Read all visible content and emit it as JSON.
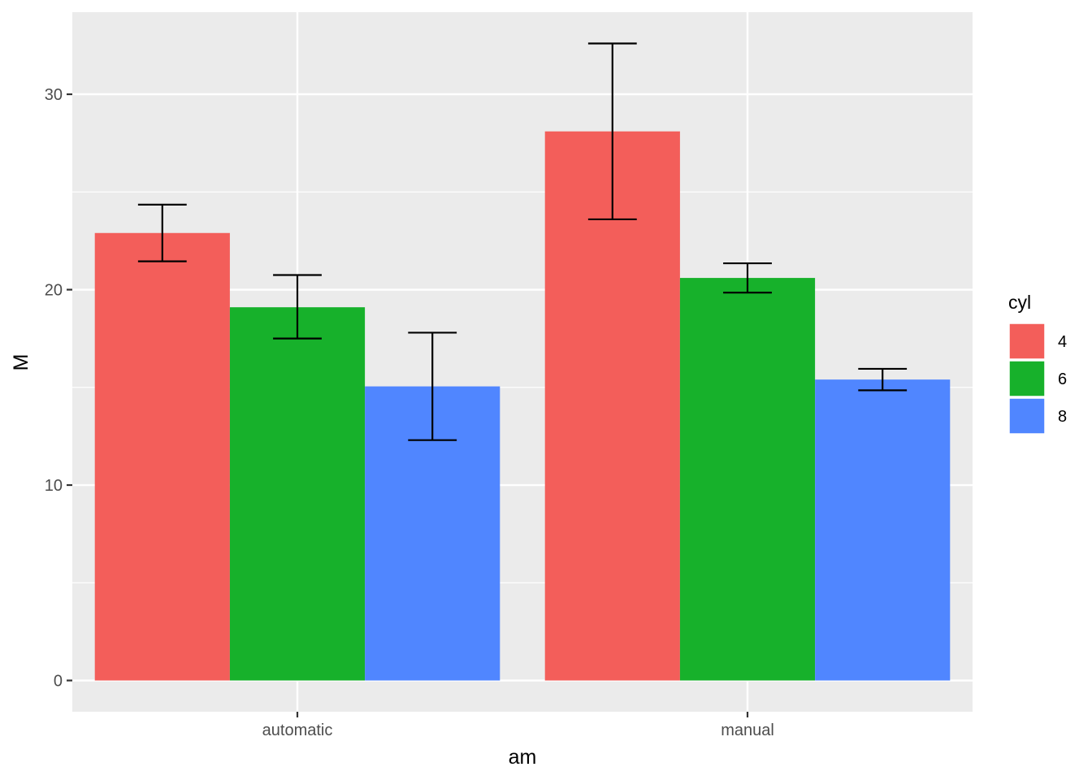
{
  "chart_data": {
    "type": "bar",
    "categories": [
      "automatic",
      "manual"
    ],
    "series": [
      {
        "name": "4",
        "color": "#F35E5A",
        "values": [
          22.9,
          28.1
        ],
        "error_low": [
          21.45,
          23.6
        ],
        "error_high": [
          24.35,
          32.6
        ]
      },
      {
        "name": "6",
        "color": "#17B12B",
        "values": [
          19.1,
          20.6
        ],
        "error_low": [
          17.5,
          19.85
        ],
        "error_high": [
          20.75,
          21.35
        ]
      },
      {
        "name": "8",
        "color": "#5086FF",
        "values": [
          15.05,
          15.4
        ],
        "error_low": [
          12.3,
          14.85
        ],
        "error_high": [
          17.8,
          15.95
        ]
      }
    ],
    "xlabel": "am",
    "ylabel": "M",
    "ylim": [
      -1.6,
      34.2
    ],
    "yticks": [
      0,
      10,
      20,
      30
    ],
    "grid": true,
    "legend": {
      "title": "cyl",
      "position": "right"
    }
  }
}
